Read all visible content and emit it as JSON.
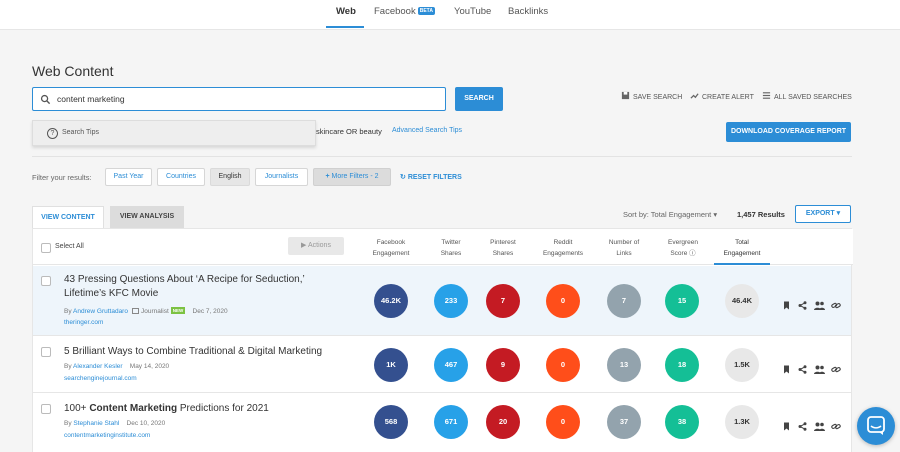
{
  "nav": {
    "tabs": [
      "Web",
      "Facebook",
      "YouTube",
      "Backlinks"
    ],
    "beta_label": "BETA"
  },
  "page_title": "Web Content",
  "search": {
    "value": "content marketing",
    "button_label": "SEARCH"
  },
  "search_tips": {
    "label": "Search Tips"
  },
  "example_query": "skincare OR beauty",
  "advanced_link": "Advanced Search Tips",
  "actions": {
    "save_search": "SAVE SEARCH",
    "create_alert": "CREATE ALERT",
    "all_saved": "ALL SAVED SEARCHES",
    "download": "DOWNLOAD COVERAGE REPORT"
  },
  "filters": {
    "label": "Filter your results:",
    "chips": [
      "Past Year",
      "Countries",
      "English",
      "Journalists"
    ],
    "more": "More Filters - 2",
    "reset": "RESET FILTERS"
  },
  "view_tabs": {
    "content": "VIEW CONTENT",
    "analysis": "VIEW ANALYSIS"
  },
  "sort": {
    "label": "Sort by: Total Engagement",
    "results": "1,457 Results",
    "export": "EXPORT"
  },
  "table": {
    "select_all": "Select All",
    "actions_label": "Actions",
    "columns": [
      [
        "Facebook",
        "Engagement"
      ],
      [
        "Twitter",
        "Shares"
      ],
      [
        "Pinterest",
        "Shares"
      ],
      [
        "Reddit",
        "Engagements"
      ],
      [
        "Number of",
        "Links"
      ],
      [
        "Evergreen",
        "Score"
      ],
      [
        "Total",
        "Engagement"
      ]
    ],
    "rows": [
      {
        "title_plain": "43 Pressing Questions About ‘A Recipe for Seduction,’ Lifetime’s KFC Movie",
        "by": "By",
        "author": "Andrew Gruttadaro",
        "role": "Journalist",
        "badge": "NEW",
        "date": "Dec 7, 2020",
        "domain": "theringer.com",
        "values": [
          "46.2K",
          "233",
          "7",
          "0",
          "7",
          "15",
          "46.4K"
        ]
      },
      {
        "title_plain": "5 Brilliant Ways to Combine Traditional & Digital Marketing",
        "by": "By",
        "author": "Alexander Kesler",
        "date": "May 14, 2020",
        "domain": "searchenginejournal.com",
        "values": [
          "1K",
          "467",
          "9",
          "0",
          "13",
          "18",
          "1.5K"
        ]
      },
      {
        "title_pre": "100+ ",
        "title_bold": "Content Marketing",
        "title_post": " Predictions for 2021",
        "by": "By",
        "author": "Stephanie Stahl",
        "date": "Dec 10, 2020",
        "domain": "contentmarketinginstitute.com",
        "values": [
          "568",
          "671",
          "20",
          "0",
          "37",
          "38",
          "1.3K"
        ]
      }
    ]
  },
  "colors": {
    "accent": "#2c8dd6",
    "facebook": "#34508f",
    "twitter": "#27a1e8",
    "pinterest": "#c41b23",
    "reddit": "#ff4e1a",
    "links": "#93a3ad",
    "evergreen": "#14bf96",
    "total": "#e8e8e8"
  },
  "icons": [
    "search-icon",
    "question-icon",
    "bookmark-icon",
    "share-icon",
    "users-icon",
    "link-icon",
    "chat-icon"
  ]
}
